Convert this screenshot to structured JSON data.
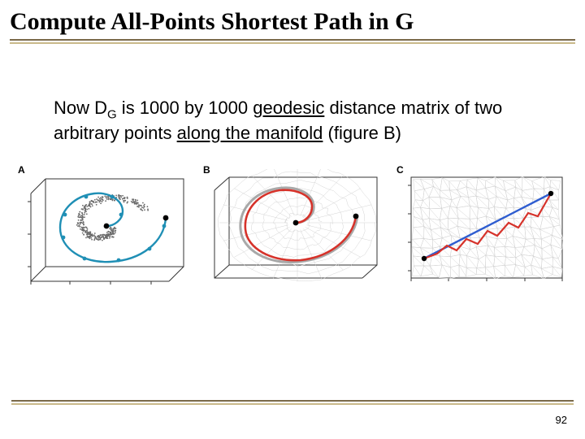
{
  "title": "Compute All-Points Shortest Path in G",
  "body": {
    "prefix": "Now D",
    "sub": "G",
    "mid1": " is 1000 by 1000 ",
    "u1": "geodesic",
    "mid2": " distance matrix of two arbitrary points ",
    "u2": "along the manifold",
    "tail": " (figure B)"
  },
  "panels": {
    "A": {
      "label": "A"
    },
    "B": {
      "label": "B"
    },
    "C": {
      "label": "C"
    }
  },
  "page": "92",
  "colors": {
    "scatter": "#666666",
    "spiralA": "#1f8fb5",
    "mesh": "#bdbdbd",
    "pathB_outer": "#9a9a9a",
    "pathB_red": "#d6322a",
    "pathC_blue": "#2e5dd0",
    "pathC_red": "#d6322a",
    "box": "#333333",
    "tick": "#333333"
  }
}
